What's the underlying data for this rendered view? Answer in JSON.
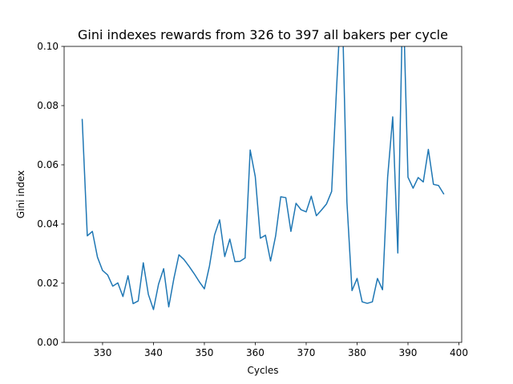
{
  "chart_data": {
    "type": "line",
    "title": "Gini indexes rewards from 326 to 397 all bakers per cycle",
    "xlabel": "Cycles",
    "ylabel": "Gini index",
    "xlim": [
      322.45,
      400.55
    ],
    "ylim": [
      0.0,
      0.1
    ],
    "xticks": [
      330,
      340,
      350,
      360,
      370,
      380,
      390,
      400
    ],
    "yticks": [
      0.0,
      0.02,
      0.04,
      0.06,
      0.08,
      0.1
    ],
    "xtick_labels": [
      "330",
      "340",
      "350",
      "360",
      "370",
      "380",
      "390",
      "400"
    ],
    "ytick_labels": [
      "0.00",
      "0.02",
      "0.04",
      "0.06",
      "0.08",
      "0.10"
    ],
    "grid": false,
    "legend": "none",
    "series": [
      {
        "color": "#1f77b4",
        "x": [
          326,
          327,
          328,
          329,
          330,
          331,
          332,
          333,
          334,
          335,
          336,
          337,
          338,
          339,
          340,
          341,
          342,
          343,
          344,
          345,
          346,
          347,
          348,
          349,
          350,
          351,
          352,
          353,
          354,
          355,
          356,
          357,
          358,
          359,
          360,
          361,
          362,
          363,
          364,
          365,
          366,
          367,
          368,
          369,
          370,
          371,
          372,
          373,
          374,
          375,
          376,
          377,
          378,
          379,
          380,
          381,
          382,
          383,
          384,
          385,
          386,
          387,
          388,
          389,
          390,
          391,
          392,
          393,
          394,
          395,
          396,
          397
        ],
        "values": [
          0.0753,
          0.036,
          0.0375,
          0.0288,
          0.0243,
          0.0228,
          0.019,
          0.0201,
          0.0155,
          0.0225,
          0.0131,
          0.014,
          0.0269,
          0.0162,
          0.0111,
          0.0197,
          0.0249,
          0.012,
          0.0215,
          0.0296,
          0.028,
          0.0257,
          0.0232,
          0.0205,
          0.0181,
          0.0258,
          0.0363,
          0.0414,
          0.029,
          0.0349,
          0.0273,
          0.0274,
          0.0285,
          0.065,
          0.056,
          0.0352,
          0.0362,
          0.0275,
          0.036,
          0.0492,
          0.0489,
          0.0375,
          0.047,
          0.0448,
          0.0441,
          0.0494,
          0.0428,
          0.0447,
          0.0468,
          0.051,
          0.087,
          0.12,
          0.0475,
          0.0175,
          0.0216,
          0.0137,
          0.0132,
          0.0137,
          0.0216,
          0.0178,
          0.0558,
          0.0762,
          0.0302,
          0.12,
          0.0558,
          0.0521,
          0.0557,
          0.0542,
          0.0652,
          0.0534,
          0.053,
          0.0502
        ]
      }
    ]
  }
}
